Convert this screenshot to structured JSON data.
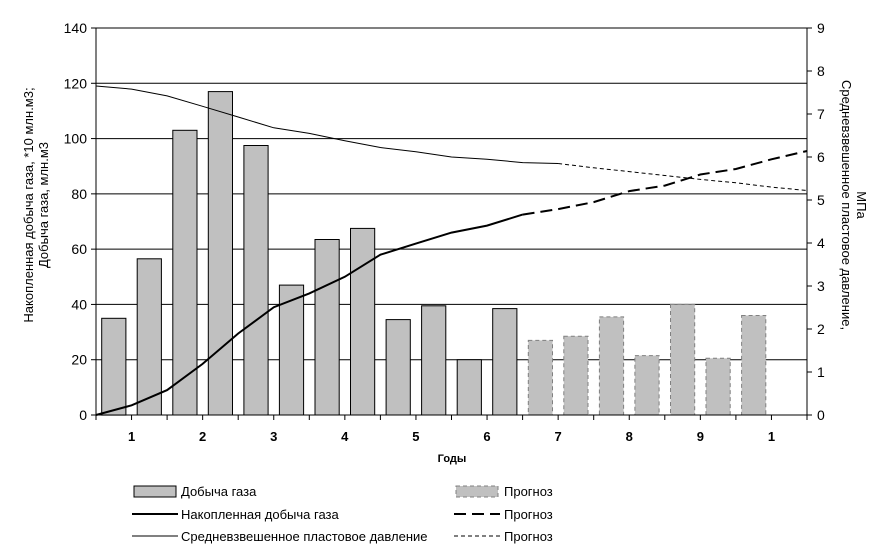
{
  "chart_data": {
    "type": "bar",
    "xlabel": "Годы",
    "x_tick_labels": [
      "1",
      "2",
      "3",
      "4",
      "5",
      "6",
      "7",
      "8",
      "9",
      "1"
    ],
    "ylabel_left_line1": "Накопленная добыча газа, *10 млн.м3;",
    "ylabel_left_line2": "Добыча газа, млн.м3",
    "ylabel_right_line1": "Средневзвешенное пластовое давление,",
    "ylabel_right_line2": "МПа",
    "ylim_left": [
      0,
      140
    ],
    "ylim_right": [
      0,
      9
    ],
    "yticks_left": [
      0,
      20,
      40,
      60,
      80,
      100,
      120,
      140
    ],
    "yticks_right": [
      0,
      1,
      2,
      3,
      4,
      5,
      6,
      7,
      8,
      9
    ],
    "n_periods": 20,
    "grid": true,
    "bars_actual": {
      "name": "Добыча газа",
      "values": [
        35,
        56.5,
        103,
        117,
        97.5,
        47,
        63.5,
        67.5,
        34.5,
        39.5,
        20,
        38.5
      ]
    },
    "bars_forecast": {
      "name": "Прогноз",
      "values": [
        27,
        28.5,
        35.5,
        21.5,
        40,
        20.5,
        36
      ]
    },
    "cumulative_actual": {
      "name": "Накопленная добыча газа",
      "x": [
        0,
        1,
        2,
        3,
        4,
        5,
        6,
        7,
        8,
        9,
        10,
        11,
        12
      ],
      "values": [
        0,
        3.5,
        9,
        18.5,
        29.5,
        39,
        44,
        50,
        58,
        62,
        66,
        68.5,
        72.5
      ]
    },
    "cumulative_forecast": {
      "name": "Прогноз",
      "x": [
        12,
        13,
        14,
        15,
        16,
        17,
        18,
        19,
        20
      ],
      "values": [
        72.5,
        74.5,
        77,
        81,
        83,
        87,
        89,
        92.5,
        95.5
      ]
    },
    "pressure_actual": {
      "name": "Средневзвешенное пластовое давление",
      "x": [
        0,
        1,
        2,
        3,
        4,
        5,
        6,
        7,
        8,
        9,
        10,
        11,
        12,
        13
      ],
      "values": [
        7.65,
        7.58,
        7.42,
        7.18,
        6.93,
        6.68,
        6.55,
        6.38,
        6.22,
        6.12,
        6.0,
        5.95,
        5.87,
        5.85
      ]
    },
    "pressure_forecast": {
      "name": "Прогноз",
      "x": [
        13,
        14,
        15,
        16,
        17,
        18,
        19,
        20
      ],
      "values": [
        5.85,
        5.75,
        5.66,
        5.57,
        5.48,
        5.4,
        5.3,
        5.22
      ]
    },
    "colors": {
      "bar_fill": "#c0c0c0",
      "bar_stroke": "#000000",
      "forecast_bar_stroke": "#808080",
      "line": "#000000"
    },
    "legend": {
      "placement": "bottom",
      "items": [
        {
          "label": "Добыча газа"
        },
        {
          "label": "Прогноз"
        },
        {
          "label": "Накопленная добыча газа"
        },
        {
          "label": "Прогноз"
        },
        {
          "label": "Средневзвешенное пластовое давление"
        },
        {
          "label": "Прогноз"
        }
      ]
    }
  }
}
